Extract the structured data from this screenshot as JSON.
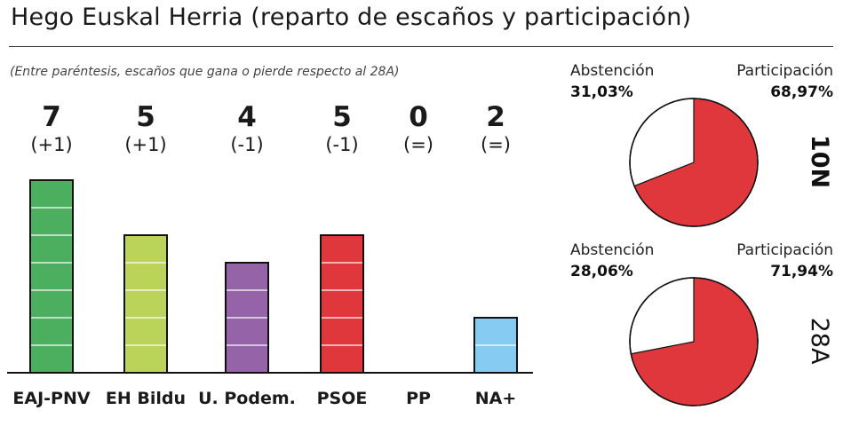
{
  "title": "Hego Euskal Herria (reparto de escaños y participación)",
  "subtitle": "(Entre paréntesis, escaños que gana o pierde respecto al 28A)",
  "colors": {
    "EAJ-PNV": "#4caf5f",
    "EH Bildu": "#bcd35a",
    "U. Podem.": "#9564a8",
    "PSOE": "#e0373d",
    "PP": "#3a62b0",
    "NA+": "#86ccf2",
    "participation": "#e0373d",
    "abstention": "#ffffff"
  },
  "chart_data": [
    {
      "type": "bar",
      "categories": [
        "EAJ-PNV",
        "EH Bildu",
        "U. Podem.",
        "PSOE",
        "PP",
        "NA+"
      ],
      "values": [
        7,
        5,
        4,
        5,
        0,
        2
      ],
      "changes": [
        "(+1)",
        "(+1)",
        "(-1)",
        "(-1)",
        "(=)",
        "(=)"
      ],
      "title": "Hego Euskal Herria (reparto de escaños y participación)",
      "subtitle": "(Entre paréntesis, escaños que gana o pierde respecto al 28A)",
      "ylim": [
        0,
        7
      ],
      "grid": false,
      "legend": "none"
    },
    {
      "type": "pie",
      "name": "10N",
      "labels": [
        "Abstención",
        "Participación"
      ],
      "values": [
        31.03,
        68.97
      ],
      "value_labels": [
        "31,03%",
        "68,97%"
      ]
    },
    {
      "type": "pie",
      "name": "28A",
      "labels": [
        "Abstención",
        "Participación"
      ],
      "values": [
        28.06,
        71.94
      ],
      "value_labels": [
        "28,06%",
        "71,94%"
      ]
    }
  ]
}
